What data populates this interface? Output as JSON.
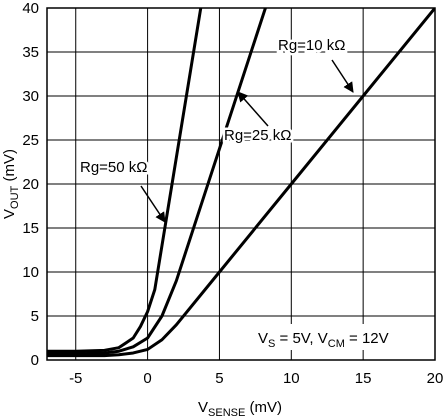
{
  "chart_data": {
    "type": "line",
    "xlabel": [
      "V",
      "SENSE",
      " (mV)"
    ],
    "ylabel": [
      "V",
      "OUT",
      " (mV)"
    ],
    "xlim": [
      -7,
      20
    ],
    "xticks": [
      -5,
      0,
      5,
      10,
      15,
      20
    ],
    "ylim": [
      0,
      40
    ],
    "yticks": [
      0,
      5,
      10,
      15,
      20,
      25,
      30,
      35,
      40
    ],
    "grid": true,
    "series": [
      {
        "name": "Rg=10 kΩ",
        "color": "#000000",
        "x": [
          -7,
          -5,
          -3,
          -2,
          -1,
          0,
          1,
          2,
          5,
          10,
          15,
          20
        ],
        "values": [
          0.5,
          0.5,
          0.5,
          0.6,
          0.8,
          1.2,
          2.3,
          4,
          10,
          20,
          30,
          40
        ]
      },
      {
        "name": "Rg=25 kΩ",
        "color": "#000000",
        "x": [
          -7,
          -5,
          -3,
          -2,
          -1,
          0,
          1,
          2,
          4,
          6,
          8.2
        ],
        "values": [
          0.7,
          0.7,
          0.8,
          1,
          1.5,
          2.5,
          5,
          9,
          19,
          29,
          40
        ]
      },
      {
        "name": "Rg=50 kΩ",
        "color": "#000000",
        "x": [
          -7,
          -5,
          -3,
          -2,
          -1,
          -0.5,
          0,
          0.5,
          1,
          2,
          3,
          3.7
        ],
        "values": [
          1,
          1,
          1.1,
          1.4,
          2.5,
          3.8,
          5.5,
          8,
          13,
          23,
          33,
          40
        ]
      }
    ],
    "condition": [
      "V",
      "S",
      " = 5V, V",
      "CM",
      " = 12V"
    ]
  }
}
